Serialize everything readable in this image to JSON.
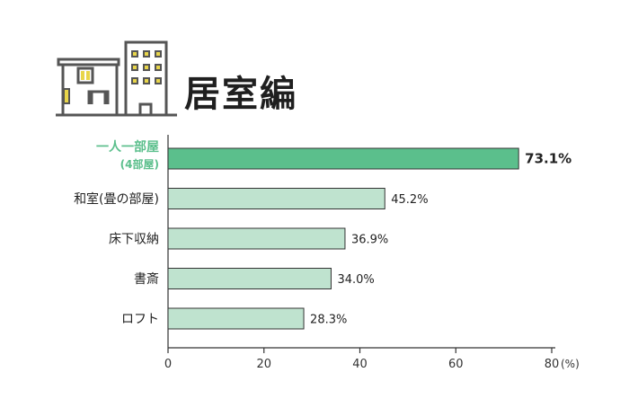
{
  "header": {
    "title": "居室編",
    "icon": "house-and-apartment-icon"
  },
  "chart_data": {
    "type": "bar",
    "orientation": "horizontal",
    "title": "居室編",
    "categories": [
      "一人一部屋",
      "和室(畳の部屋)",
      "床下収納",
      "書斎",
      "ロフト"
    ],
    "category_sublabels": [
      "(4部屋)",
      "",
      "",
      "",
      ""
    ],
    "values": [
      73.1,
      45.2,
      36.9,
      34.0,
      28.3
    ],
    "value_labels": [
      "73.1%",
      "45.2%",
      "36.9%",
      "34.0%",
      "28.3%"
    ],
    "highlight_index": 0,
    "xlim": [
      0,
      80
    ],
    "xticks": [
      "0",
      "20",
      "40",
      "60",
      "80"
    ],
    "xunit": "(%)",
    "grid": false,
    "colors": {
      "highlight_bar": "#5bbf8c",
      "bar": "#bfe3cf",
      "highlight_label": "#5bbf8c",
      "bar_stroke": "#333333"
    }
  }
}
